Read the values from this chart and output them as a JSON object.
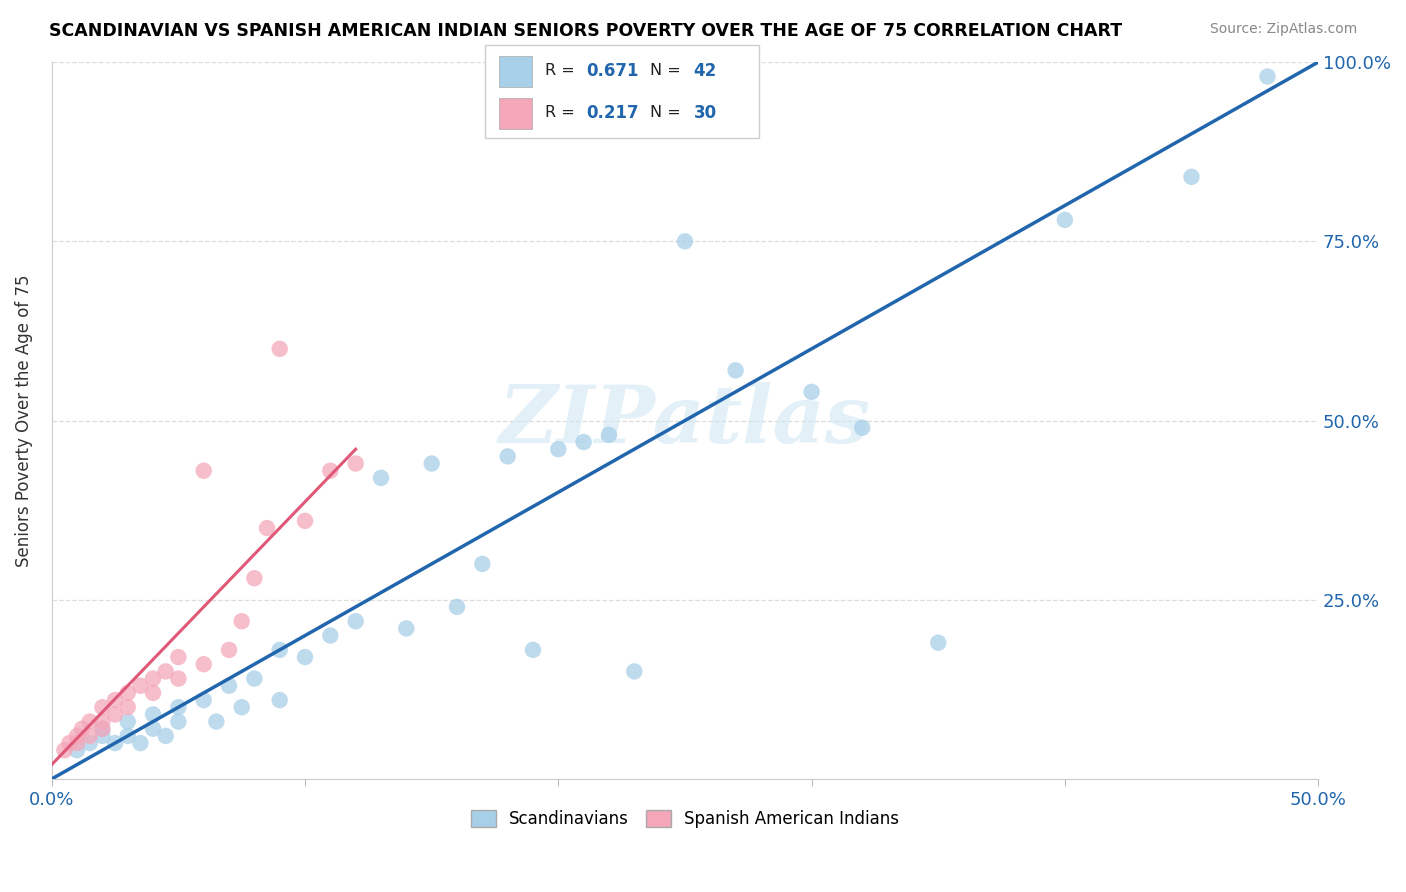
{
  "title": "SCANDINAVIAN VS SPANISH AMERICAN INDIAN SENIORS POVERTY OVER THE AGE OF 75 CORRELATION CHART",
  "source": "Source: ZipAtlas.com",
  "ylabel": "Seniors Poverty Over the Age of 75",
  "xlim": [
    0,
    0.5
  ],
  "ylim": [
    0,
    1.0
  ],
  "xticks": [
    0.0,
    0.1,
    0.2,
    0.3,
    0.4,
    0.5
  ],
  "yticks": [
    0.0,
    0.25,
    0.5,
    0.75,
    1.0
  ],
  "xtick_labels": [
    "0.0%",
    "",
    "",
    "",
    "",
    "50.0%"
  ],
  "ytick_labels": [
    "",
    "25.0%",
    "50.0%",
    "75.0%",
    "100.0%"
  ],
  "blue_R": 0.671,
  "blue_N": 42,
  "pink_R": 0.217,
  "pink_N": 30,
  "blue_color": "#a8cfe8",
  "blue_line_color": "#2166ac",
  "pink_color": "#f4a7b9",
  "pink_line_color": "#e05878",
  "diag_line_color": "#f0a0b0",
  "legend_label_blue": "Scandinavians",
  "legend_label_pink": "Spanish American Indians",
  "watermark": "ZIPatlas",
  "blue_scatter_x": [
    0.01,
    0.015,
    0.02,
    0.02,
    0.025,
    0.03,
    0.03,
    0.035,
    0.04,
    0.04,
    0.045,
    0.05,
    0.05,
    0.06,
    0.065,
    0.07,
    0.075,
    0.08,
    0.09,
    0.09,
    0.1,
    0.11,
    0.12,
    0.13,
    0.14,
    0.15,
    0.16,
    0.17,
    0.18,
    0.19,
    0.2,
    0.21,
    0.22,
    0.23,
    0.25,
    0.27,
    0.3,
    0.32,
    0.35,
    0.4,
    0.45,
    0.48
  ],
  "blue_scatter_y": [
    0.04,
    0.05,
    0.06,
    0.07,
    0.05,
    0.06,
    0.08,
    0.05,
    0.07,
    0.09,
    0.06,
    0.08,
    0.1,
    0.11,
    0.08,
    0.13,
    0.1,
    0.14,
    0.11,
    0.18,
    0.17,
    0.2,
    0.22,
    0.42,
    0.21,
    0.44,
    0.24,
    0.3,
    0.45,
    0.18,
    0.46,
    0.47,
    0.48,
    0.15,
    0.75,
    0.57,
    0.54,
    0.49,
    0.19,
    0.78,
    0.84,
    0.98
  ],
  "pink_scatter_x": [
    0.005,
    0.007,
    0.01,
    0.01,
    0.012,
    0.015,
    0.015,
    0.02,
    0.02,
    0.02,
    0.025,
    0.025,
    0.03,
    0.03,
    0.035,
    0.04,
    0.04,
    0.045,
    0.05,
    0.05,
    0.06,
    0.06,
    0.07,
    0.075,
    0.08,
    0.085,
    0.09,
    0.1,
    0.11,
    0.12
  ],
  "pink_scatter_y": [
    0.04,
    0.05,
    0.05,
    0.06,
    0.07,
    0.06,
    0.08,
    0.07,
    0.08,
    0.1,
    0.09,
    0.11,
    0.1,
    0.12,
    0.13,
    0.12,
    0.14,
    0.15,
    0.14,
    0.17,
    0.16,
    0.43,
    0.18,
    0.22,
    0.28,
    0.35,
    0.6,
    0.36,
    0.43,
    0.44
  ],
  "blue_line_x0": 0.0,
  "blue_line_y0": 0.0,
  "blue_line_x1": 0.5,
  "blue_line_y1": 1.0,
  "pink_line_x0": 0.0,
  "pink_line_y0": 0.02,
  "pink_line_x1": 0.12,
  "pink_line_y1": 0.46,
  "diag_line_x0": 0.0,
  "diag_line_y0": 0.0,
  "diag_line_x1": 0.5,
  "diag_line_y1": 1.0
}
